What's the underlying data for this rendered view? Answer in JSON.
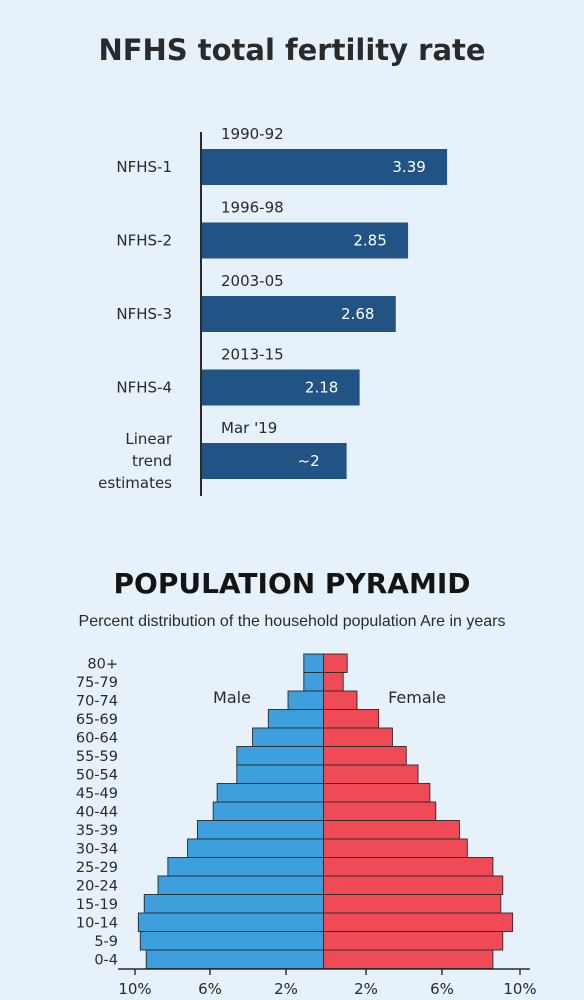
{
  "colors": {
    "fertility_bar": "#215485",
    "male": "#3d9fdb",
    "female": "#ef4a55",
    "background": "#e6f1fa"
  },
  "chart_data": [
    {
      "type": "bar",
      "orientation": "horizontal",
      "title": "NFHS total fertility rate",
      "categories": [
        "NFHS-1",
        "NFHS-2",
        "NFHS-3",
        "NFHS-4",
        "Linear trend estimates"
      ],
      "periods": [
        "1990-92",
        "1996-98",
        "2003-05",
        "2013-15",
        "Mar '19"
      ],
      "values": [
        3.39,
        2.85,
        2.68,
        2.18,
        2
      ],
      "value_labels": [
        "3.39",
        "2.85",
        "2.68",
        "2.18",
        "~2"
      ]
    },
    {
      "type": "bar",
      "orientation": "horizontal",
      "subtype": "population-pyramid",
      "title": "POPULATION PYRAMID",
      "subtitle": "Percent distribution of the household population Are in years",
      "categories": [
        "80+",
        "75-79",
        "70-74",
        "65-69",
        "60-64",
        "55-59",
        "50-54",
        "45-49",
        "40-44",
        "35-39",
        "30-34",
        "25-29",
        "20-24",
        "15-19",
        "10-14",
        "5-9",
        "0-4"
      ],
      "series": [
        {
          "name": "Male",
          "values": [
            1.0,
            1.0,
            1.8,
            2.8,
            3.6,
            4.4,
            4.4,
            5.4,
            5.6,
            6.4,
            6.9,
            7.9,
            8.4,
            9.1,
            9.4,
            9.3,
            9.0
          ]
        },
        {
          "name": "Female",
          "values": [
            1.2,
            1.0,
            1.7,
            2.8,
            3.5,
            4.2,
            4.8,
            5.4,
            5.7,
            6.9,
            7.3,
            8.6,
            9.1,
            9.0,
            9.6,
            9.1,
            8.6
          ]
        }
      ],
      "x_ticks": [
        "10%",
        "6%",
        "2%",
        "2%",
        "6%",
        "10%"
      ],
      "xlim": [
        -10,
        10
      ]
    }
  ]
}
